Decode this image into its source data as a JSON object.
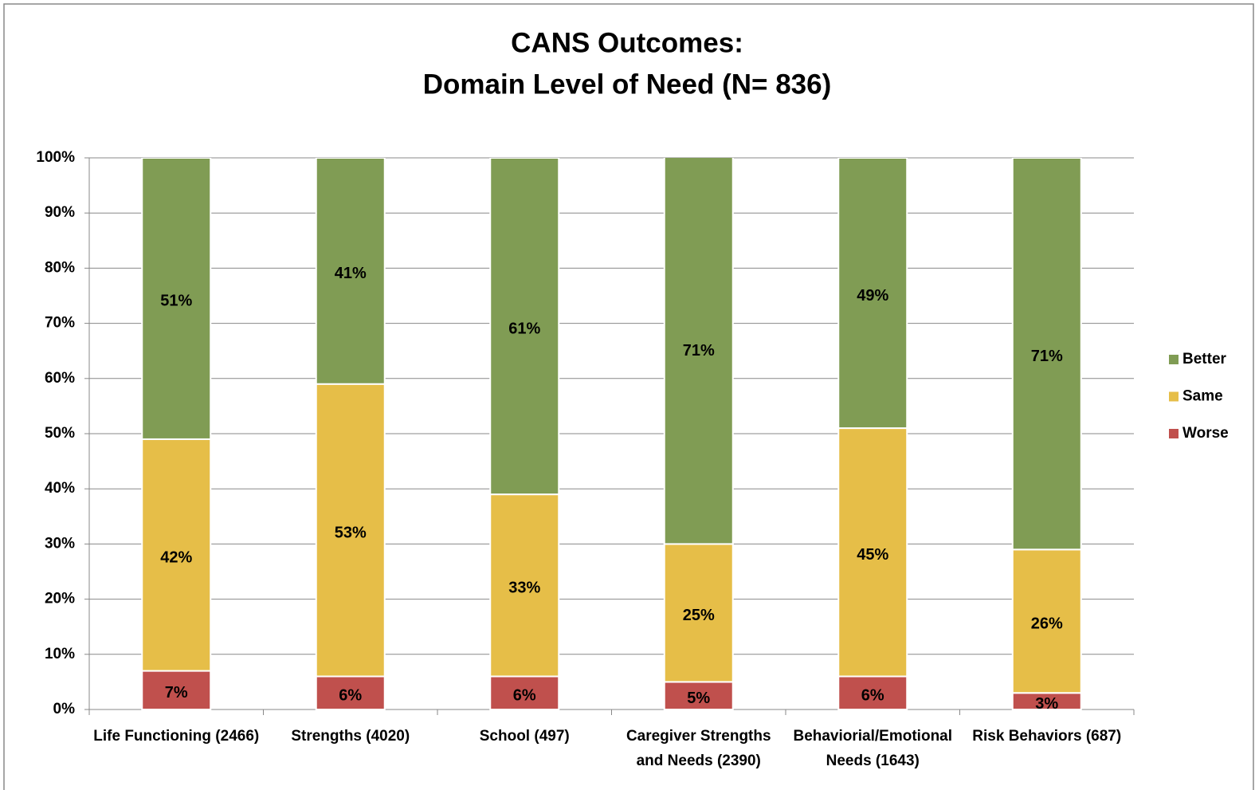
{
  "chart_data": {
    "type": "stacked_bar",
    "title": [
      "CANS Outcomes:",
      "Domain Level of Need (N= 836)"
    ],
    "categories": [
      [
        "Life Functioning (2466)"
      ],
      [
        "Strengths (4020)"
      ],
      [
        "School (497)"
      ],
      [
        "Caregiver Strengths",
        "and Needs  (2390)"
      ],
      [
        "Behaviorial/Emotional",
        "Needs (1643)"
      ],
      [
        "Risk Behaviors (687)"
      ]
    ],
    "series": [
      {
        "name": "Worse",
        "color": "#c0504d",
        "values": [
          7,
          6,
          6,
          5,
          6,
          3
        ],
        "value_labels": [
          "7%",
          "6%",
          "6%",
          "5%",
          "6%",
          "3%"
        ]
      },
      {
        "name": "Same",
        "color": "#e6be48",
        "values": [
          42,
          53,
          33,
          25,
          45,
          26
        ],
        "value_labels": [
          "42%",
          "53%",
          "33%",
          "25%",
          "45%",
          "26%"
        ]
      },
      {
        "name": "Better",
        "color": "#809c54",
        "values": [
          51,
          41,
          61,
          71,
          49,
          71
        ],
        "value_labels": [
          "51%",
          "41%",
          "61%",
          "71%",
          "49%",
          "71%"
        ]
      }
    ],
    "ylim": [
      0,
      100
    ],
    "yticks": [
      {
        "value": 0,
        "label": "0%"
      },
      {
        "value": 10,
        "label": "10%"
      },
      {
        "value": 20,
        "label": "20%"
      },
      {
        "value": 30,
        "label": "30%"
      },
      {
        "value": 40,
        "label": "40%"
      },
      {
        "value": 50,
        "label": "50%"
      },
      {
        "value": 60,
        "label": "60%"
      },
      {
        "value": 70,
        "label": "70%"
      },
      {
        "value": 80,
        "label": "80%"
      },
      {
        "value": 90,
        "label": "90%"
      },
      {
        "value": 100,
        "label": "100%"
      }
    ],
    "grid": true,
    "legend": "right"
  }
}
